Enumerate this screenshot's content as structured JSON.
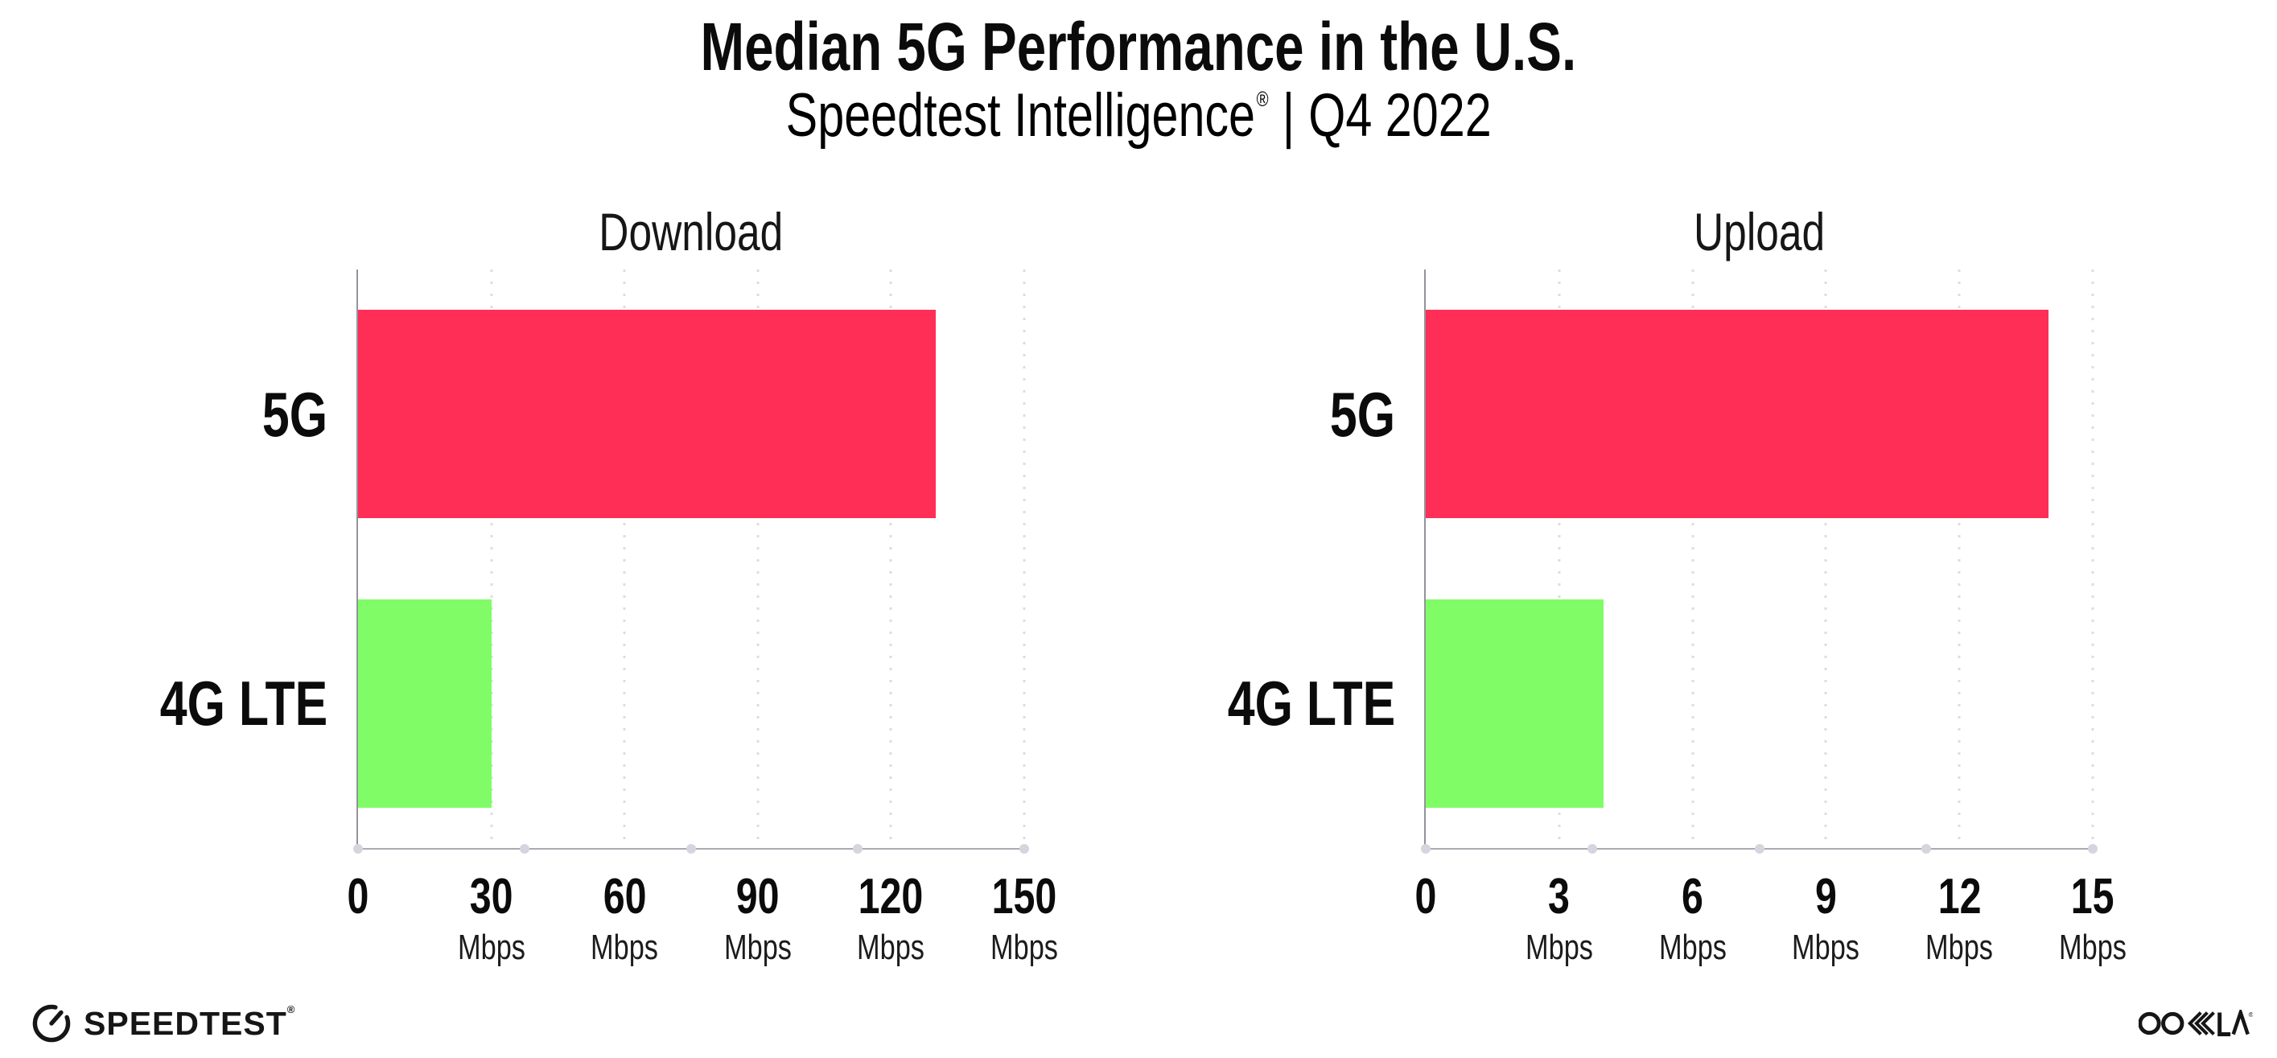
{
  "header": {
    "title": "Median 5G Performance in the U.S.",
    "subtitle_brand": "Speedtest Intelligence",
    "subtitle_registered": "®",
    "subtitle_separator": "|",
    "subtitle_period": "Q4 2022"
  },
  "chart_data": [
    {
      "type": "bar",
      "orientation": "horizontal",
      "title": "Download",
      "categories": [
        "5G",
        "4G LTE"
      ],
      "values": [
        130,
        30
      ],
      "unit": "Mbps",
      "xlim": [
        0,
        150
      ],
      "xticks": [
        0,
        30,
        60,
        90,
        120,
        150
      ],
      "grid": "dotted-vertical",
      "legend": "none",
      "bar_colors": [
        "#FF2E56",
        "#80FC66"
      ]
    },
    {
      "type": "bar",
      "orientation": "horizontal",
      "title": "Upload",
      "categories": [
        "5G",
        "4G LTE"
      ],
      "values": [
        14,
        4
      ],
      "unit": "Mbps",
      "xlim": [
        0,
        15
      ],
      "xticks": [
        0,
        3,
        6,
        9,
        12,
        15
      ],
      "grid": "dotted-vertical",
      "legend": "none",
      "bar_colors": [
        "#FF2E56",
        "#80FC66"
      ]
    }
  ],
  "footer": {
    "speedtest_wordmark": "SPEEDTEST",
    "speedtest_registered": "®",
    "speedtest_icon": "gauge-icon",
    "ookla_wordmark": "OOKLA",
    "ookla_registered": "®"
  },
  "colors": {
    "bar_5g": "#FF2E56",
    "bar_4g_lte": "#80FC66",
    "text": "#0b0b0b",
    "axis": "#aaaab1",
    "gridline": "#dcdce6",
    "axis_dot": "#d5d5df"
  }
}
